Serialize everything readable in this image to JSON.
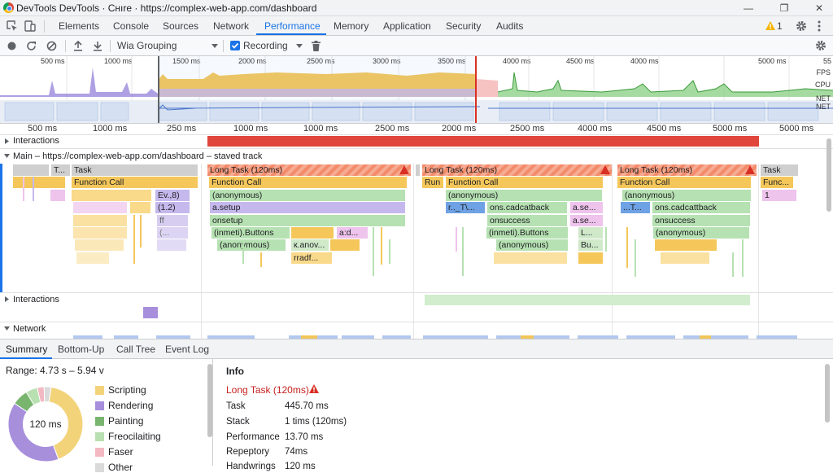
{
  "window": {
    "title": "DevTools DevTools · Cнıre · https://complex-web-app.com/dashboard",
    "minimize_icon": "—",
    "maximize_icon": "❐",
    "close_icon": "✕"
  },
  "tabs": [
    "Elements",
    "Console",
    "Sources",
    "Network",
    "Performance",
    "Memory",
    "Application",
    "Security",
    "Audits"
  ],
  "active_tab": "Performance",
  "warnings_count": "1",
  "toolbar": {
    "grouping": "Wia Grouping",
    "recording_label": "Recording"
  },
  "overview": {
    "ticks": [
      "500 ms",
      "1000 ms",
      "1500 ms",
      "2000 ms",
      "2500 ms",
      "3000 ms",
      "3500 ms",
      "4000 ms",
      "4500 ms",
      "4000 ms",
      "5000 ms",
      "55"
    ],
    "lanes": [
      "FPS",
      "CPU",
      "NET",
      "NET"
    ]
  },
  "ruler": {
    "ticks": [
      "500 ms",
      "1000 ms",
      "250 ms",
      "1000 ms",
      "1000 ms",
      "2500 ms",
      "2000 ms",
      "2500 ms",
      "4000 ms",
      "4500 ms",
      "5000 ms",
      "5000 ms"
    ]
  },
  "tracks": {
    "interactions_label": "Interactions",
    "main_label": "Main – https://complex-web-app.com/dashboard – staved track",
    "interactions2_label": "Interactions",
    "network_label": "Network",
    "blocks": {
      "t_small": "T...",
      "task1": "Task",
      "func1": "Function Call",
      "ev": "Ev.,8)",
      "one_two": "(1.2)",
      "ff": "ff",
      "paren": "(...",
      "long1": "Long Task (120ms)",
      "func2": "Function Call",
      "anon1": "(anonymous)",
      "asetup": "a.setup",
      "onsetup": "onsetup",
      "inmeti1": "(inmeti).Buttons",
      "ad": "a:d...",
      "anon2": "(anonymous)",
      "kanov": "к.anov...",
      "rradf": "rradf...",
      "long2": "Long Task (120ms)",
      "run": "Run",
      "func3": "Function Call",
      "anon3": "(anonymous)",
      "rt": "r.._T\\...",
      "onscad1": "ons.cadcatback",
      "ase1": "a.se...",
      "onsucc1": "onsuccess",
      "ase2": "a.se...",
      "inmeti2": "(inmeti).Buttons",
      "l1": "L...",
      "anon4": "(anonymous)",
      "bu": "Bu...",
      "long3": "Long Task (120ms)",
      "func4": "Function Call",
      "anon5": "(anonymous)",
      "dt": "...T...",
      "onscad2": "ons.cadcattback",
      "onsucc2": "onsuccess",
      "anon6": "(anonymous)",
      "task4": "Task",
      "func5": "Func...",
      "one": "1"
    }
  },
  "bottom_tabs": [
    "Summary",
    "Bottom-Up",
    "Call Tree",
    "Event Log"
  ],
  "summary": {
    "range": "Range: 4.73 s – 5.94 v",
    "center_label": "120 ms",
    "legend": [
      {
        "label": "Scripting",
        "color": "#f3d37a"
      },
      {
        "label": "Rendering",
        "color": "#a78fdc"
      },
      {
        "label": "Painting",
        "color": "#79b56e"
      },
      {
        "label": "Freocilaiting",
        "color": "#b9e0b0"
      },
      {
        "label": "Faser",
        "color": "#f2b9c2"
      },
      {
        "label": "Other",
        "color": "#dadada"
      }
    ],
    "donut": [
      {
        "label": "Scripting",
        "value": 42
      },
      {
        "label": "Rendering",
        "value": 40
      },
      {
        "label": "Painting",
        "value": 7
      },
      {
        "label": "Freocilaiting",
        "value": 5
      },
      {
        "label": "Faser",
        "value": 3
      },
      {
        "label": "Other",
        "value": 3
      }
    ]
  },
  "info": {
    "heading": "Info",
    "task_title": "Long Task (120ms)",
    "rows": [
      {
        "label": "Task",
        "value": "445.70 ms"
      },
      {
        "label": "Stack",
        "value": "1 tims (120ms)"
      },
      {
        "label": "Performance",
        "value": "13.70 ms"
      },
      {
        "label": "Repeptory",
        "value": "74ms"
      },
      {
        "label": "Handwrings",
        "value": "120 ms"
      }
    ]
  }
}
